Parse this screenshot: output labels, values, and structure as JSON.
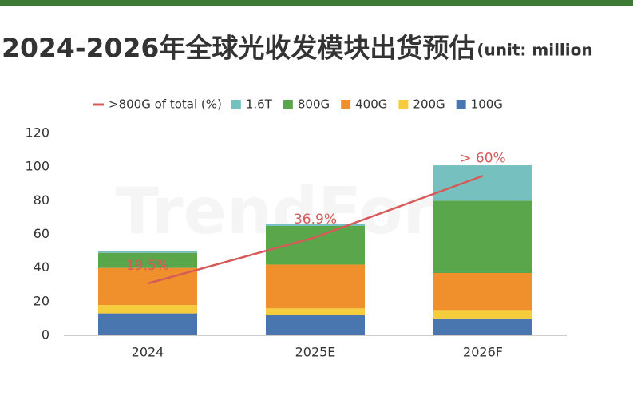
{
  "chart_data": {
    "type": "stacked-bar",
    "title": "2024-2026年全球光收发模块出货预估",
    "subtitle": "(unit: million",
    "watermark": "TrendForce",
    "categories": [
      "2024",
      "2025E",
      "2026F"
    ],
    "series": [
      {
        "name": "1.6T",
        "color": "#76c1c0",
        "values": [
          1,
          1,
          21
        ]
      },
      {
        "name": "800G",
        "color": "#5aa64a",
        "values": [
          9,
          23,
          43
        ]
      },
      {
        "name": "400G",
        "color": "#f0902c",
        "values": [
          22,
          26,
          22
        ]
      },
      {
        "name": "200G",
        "color": "#f5cc3b",
        "values": [
          5,
          4,
          5
        ]
      },
      {
        "name": "100G",
        "color": "#4a76b0",
        "values": [
          13,
          12,
          10
        ]
      }
    ],
    "line": {
      "name": ">800G of total (%)",
      "color": "#d65a5a",
      "axis": "y2",
      "values": [
        19.5,
        36.9,
        60
      ],
      "value_labels": [
        "19.5%",
        "36.9%",
        "> 60%"
      ]
    },
    "ylim": [
      0,
      120
    ],
    "yticks": [
      0,
      20,
      40,
      60,
      80,
      100,
      120
    ],
    "y2lim": [
      0,
      76
    ],
    "grid": false
  }
}
